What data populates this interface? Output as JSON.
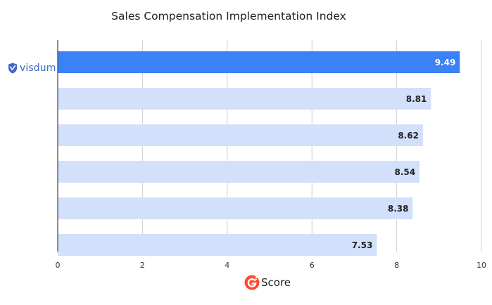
{
  "chart_data": {
    "type": "bar",
    "orientation": "horizontal",
    "title": "Sales Compensation Implementation Index",
    "categories": [
      "visdum",
      "",
      "",
      "",
      "",
      ""
    ],
    "values": [
      9.49,
      8.81,
      8.62,
      8.54,
      8.38,
      7.53
    ],
    "value_labels": [
      "9.49",
      "8.81",
      "8.62",
      "8.54",
      "8.38",
      "7.53"
    ],
    "xlim": [
      0,
      10
    ],
    "xticks": [
      0,
      2,
      4,
      6,
      8,
      10
    ],
    "xtick_labels": [
      "0",
      "2",
      "4",
      "6",
      "8",
      "10"
    ],
    "grid": "vertical",
    "colors": {
      "highlight": "#3b82f6",
      "default": "#d3e0fb",
      "grid": "#cfcfcf"
    }
  },
  "logos": {
    "visdum_label": "visdum",
    "g2_superscript": "2",
    "g2_score_label": "Score"
  },
  "icons": [
    "visdum-shield-icon",
    "g2-logo-icon"
  ]
}
